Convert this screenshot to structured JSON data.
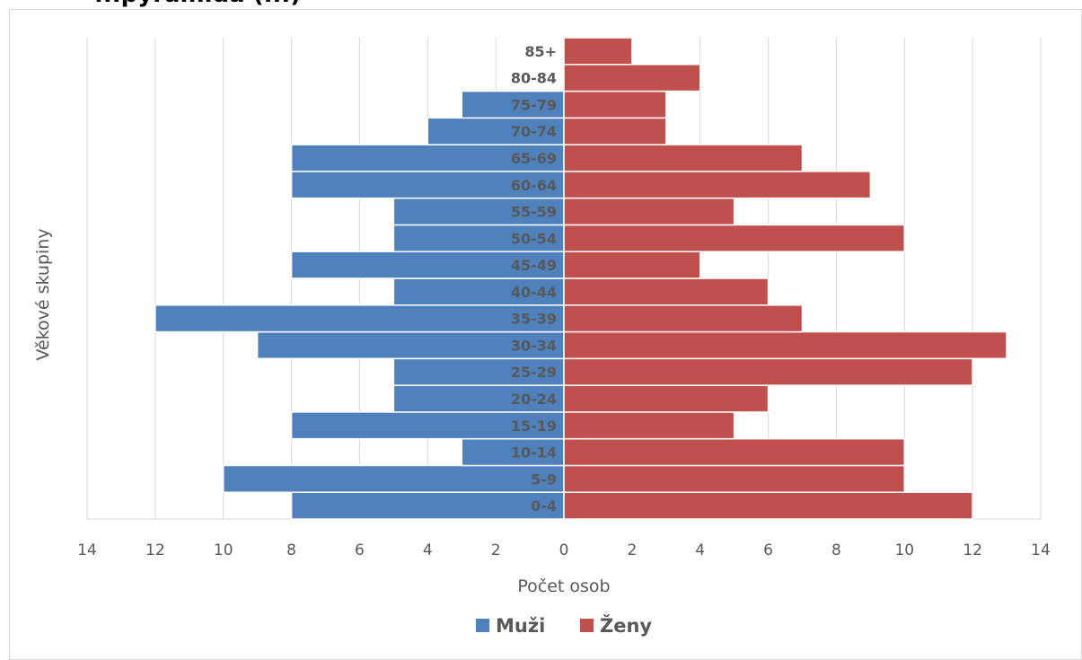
{
  "chart_data": {
    "type": "bar",
    "orientation": "horizontal",
    "title": "...pyramida (...)",
    "xlabel": "Počet osob",
    "ylabel": "Věkové skupiny",
    "xlim": [
      -14,
      14
    ],
    "x_ticks": [
      14,
      12,
      10,
      8,
      6,
      4,
      2,
      0,
      2,
      4,
      6,
      8,
      10,
      12,
      14
    ],
    "grid": true,
    "legend_position": "bottom",
    "categories": [
      "0-4",
      "5-9",
      "10-14",
      "15-19",
      "20-24",
      "25-29",
      "30-34",
      "35-39",
      "40-44",
      "45-49",
      "50-54",
      "55-59",
      "60-64",
      "65-69",
      "70-74",
      "75-79",
      "80-84",
      "85+"
    ],
    "series": [
      {
        "name": "Muži",
        "side": "left",
        "color": "#4f81bd",
        "values": [
          8,
          10,
          3,
          8,
          5,
          5,
          9,
          12,
          5,
          8,
          5,
          5,
          8,
          8,
          4,
          3,
          0,
          0
        ]
      },
      {
        "name": "Ženy",
        "side": "right",
        "color": "#c0504d",
        "values": [
          12,
          10,
          10,
          5,
          6,
          12,
          13,
          7,
          6,
          4,
          10,
          5,
          9,
          7,
          3,
          3,
          4,
          2
        ]
      }
    ]
  }
}
